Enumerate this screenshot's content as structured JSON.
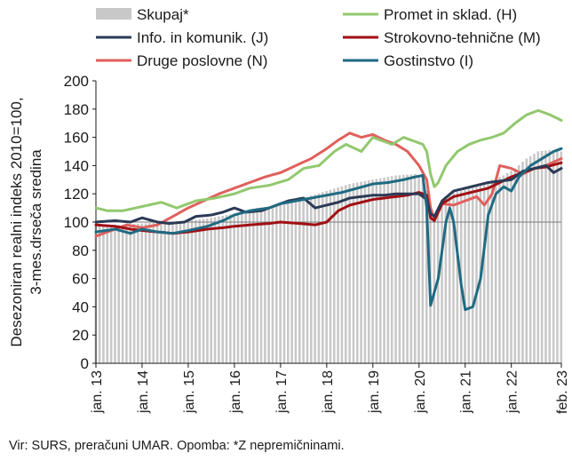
{
  "chart_data": {
    "type": "line",
    "ylabel_lines": [
      "Desezoniran realni indeks 2010=100,",
      "3-mes.drseča sredina"
    ],
    "ylim": [
      0,
      200
    ],
    "yticks": [
      0,
      20,
      40,
      60,
      80,
      100,
      120,
      140,
      160,
      180,
      200
    ],
    "reference_line": 100,
    "grid": false,
    "x_start": "2013-01",
    "x_end": "2023-02",
    "x_ticks": [
      {
        "label": "jan. 13",
        "date": "2013-01"
      },
      {
        "label": "jan. 14",
        "date": "2014-01"
      },
      {
        "label": "jan. 15",
        "date": "2015-01"
      },
      {
        "label": "jan. 16",
        "date": "2016-01"
      },
      {
        "label": "jan. 17",
        "date": "2017-01"
      },
      {
        "label": "jan. 18",
        "date": "2018-01"
      },
      {
        "label": "jan. 19",
        "date": "2019-01"
      },
      {
        "label": "jan. 20",
        "date": "2020-01"
      },
      {
        "label": "jan. 21",
        "date": "2021-01"
      },
      {
        "label": "jan. 22",
        "date": "2022-01"
      },
      {
        "label": "feb. 23",
        "date": "2023-02"
      }
    ],
    "legend_placement": "top",
    "legend_order": [
      "Skupaj*",
      "Promet in sklad. (H)",
      "Info. in komunik. (J)",
      "Strokovno-tehnične (M)",
      "Druge poslovne (N)",
      "Gostinstvo (I)"
    ],
    "bars": {
      "name": "Skupaj*",
      "color": "#c8c8c8",
      "points": [
        [
          "2013-01",
          98
        ],
        [
          "2013-07",
          98
        ],
        [
          "2014-01",
          99
        ],
        [
          "2014-07",
          100
        ],
        [
          "2015-01",
          101
        ],
        [
          "2015-07",
          103
        ],
        [
          "2016-01",
          106
        ],
        [
          "2016-07",
          110
        ],
        [
          "2017-01",
          112
        ],
        [
          "2017-07",
          117
        ],
        [
          "2018-01",
          122
        ],
        [
          "2018-07",
          127
        ],
        [
          "2019-01",
          130
        ],
        [
          "2019-07",
          133
        ],
        [
          "2019-12",
          134
        ],
        [
          "2020-02",
          133
        ],
        [
          "2020-03",
          122
        ],
        [
          "2020-04",
          104
        ],
        [
          "2020-05",
          102
        ],
        [
          "2020-06",
          110
        ],
        [
          "2020-08",
          118
        ],
        [
          "2020-10",
          121
        ],
        [
          "2020-12",
          122
        ],
        [
          "2021-02",
          124
        ],
        [
          "2021-05",
          126
        ],
        [
          "2021-08",
          130
        ],
        [
          "2021-11",
          133
        ],
        [
          "2022-02",
          138
        ],
        [
          "2022-05",
          145
        ],
        [
          "2022-08",
          150
        ],
        [
          "2022-11",
          151
        ],
        [
          "2023-02",
          150
        ]
      ]
    },
    "series": [
      {
        "name": "Promet in sklad. (H)",
        "color": "#92c86e",
        "points": [
          [
            "2013-01",
            110
          ],
          [
            "2013-04",
            108
          ],
          [
            "2013-08",
            108
          ],
          [
            "2014-01",
            111
          ],
          [
            "2014-06",
            114
          ],
          [
            "2014-10",
            110
          ],
          [
            "2015-03",
            115
          ],
          [
            "2015-08",
            117
          ],
          [
            "2016-01",
            120
          ],
          [
            "2016-05",
            124
          ],
          [
            "2016-10",
            126
          ],
          [
            "2017-03",
            130
          ],
          [
            "2017-07",
            138
          ],
          [
            "2017-11",
            140
          ],
          [
            "2018-03",
            150
          ],
          [
            "2018-06",
            155
          ],
          [
            "2018-10",
            150
          ],
          [
            "2019-01",
            160
          ],
          [
            "2019-03",
            158
          ],
          [
            "2019-06",
            155
          ],
          [
            "2019-09",
            160
          ],
          [
            "2019-12",
            157
          ],
          [
            "2020-02",
            155
          ],
          [
            "2020-03",
            150
          ],
          [
            "2020-04",
            134
          ],
          [
            "2020-05",
            125
          ],
          [
            "2020-06",
            128
          ],
          [
            "2020-08",
            140
          ],
          [
            "2020-11",
            150
          ],
          [
            "2021-02",
            155
          ],
          [
            "2021-05",
            158
          ],
          [
            "2021-08",
            160
          ],
          [
            "2021-11",
            163
          ],
          [
            "2022-02",
            170
          ],
          [
            "2022-05",
            176
          ],
          [
            "2022-08",
            179
          ],
          [
            "2022-11",
            176
          ],
          [
            "2023-02",
            172
          ]
        ]
      },
      {
        "name": "Info. in komunik. (J)",
        "color": "#2b3a55",
        "points": [
          [
            "2013-01",
            100
          ],
          [
            "2013-06",
            101
          ],
          [
            "2013-10",
            100
          ],
          [
            "2014-01",
            103
          ],
          [
            "2014-05",
            100
          ],
          [
            "2014-08",
            99
          ],
          [
            "2014-12",
            100
          ],
          [
            "2015-03",
            104
          ],
          [
            "2015-07",
            105
          ],
          [
            "2015-10",
            107
          ],
          [
            "2016-01",
            110
          ],
          [
            "2016-04",
            107
          ],
          [
            "2016-08",
            108
          ],
          [
            "2016-12",
            112
          ],
          [
            "2017-03",
            115
          ],
          [
            "2017-07",
            117
          ],
          [
            "2017-10",
            110
          ],
          [
            "2018-01",
            112
          ],
          [
            "2018-04",
            114
          ],
          [
            "2018-07",
            117
          ],
          [
            "2018-10",
            118
          ],
          [
            "2019-01",
            119
          ],
          [
            "2019-04",
            119
          ],
          [
            "2019-07",
            120
          ],
          [
            "2019-10",
            120
          ],
          [
            "2020-01",
            120
          ],
          [
            "2020-03",
            116
          ],
          [
            "2020-04",
            106
          ],
          [
            "2020-05",
            104
          ],
          [
            "2020-07",
            115
          ],
          [
            "2020-10",
            122
          ],
          [
            "2021-01",
            124
          ],
          [
            "2021-04",
            126
          ],
          [
            "2021-07",
            128
          ],
          [
            "2021-10",
            129
          ],
          [
            "2022-01",
            130
          ],
          [
            "2022-04",
            136
          ],
          [
            "2022-07",
            138
          ],
          [
            "2022-10",
            140
          ],
          [
            "2022-12",
            135
          ],
          [
            "2023-02",
            138
          ]
        ]
      },
      {
        "name": "Strokovno-tehnične (M)",
        "color": "#a00f14",
        "points": [
          [
            "2013-01",
            98
          ],
          [
            "2013-06",
            97
          ],
          [
            "2013-10",
            95
          ],
          [
            "2014-01",
            94
          ],
          [
            "2014-05",
            93
          ],
          [
            "2014-09",
            92
          ],
          [
            "2015-01",
            93
          ],
          [
            "2015-06",
            95
          ],
          [
            "2015-10",
            96
          ],
          [
            "2016-01",
            97
          ],
          [
            "2016-05",
            98
          ],
          [
            "2016-10",
            99
          ],
          [
            "2017-01",
            100
          ],
          [
            "2017-06",
            99
          ],
          [
            "2017-10",
            98
          ],
          [
            "2018-01",
            100
          ],
          [
            "2018-04",
            108
          ],
          [
            "2018-07",
            112
          ],
          [
            "2018-10",
            114
          ],
          [
            "2019-01",
            116
          ],
          [
            "2019-04",
            117
          ],
          [
            "2019-07",
            118
          ],
          [
            "2019-10",
            119
          ],
          [
            "2020-01",
            121
          ],
          [
            "2020-03",
            119
          ],
          [
            "2020-04",
            103
          ],
          [
            "2020-05",
            101
          ],
          [
            "2020-07",
            113
          ],
          [
            "2020-10",
            118
          ],
          [
            "2021-01",
            120
          ],
          [
            "2021-04",
            122
          ],
          [
            "2021-07",
            124
          ],
          [
            "2021-10",
            128
          ],
          [
            "2022-01",
            132
          ],
          [
            "2022-04",
            135
          ],
          [
            "2022-07",
            138
          ],
          [
            "2022-10",
            139
          ],
          [
            "2023-02",
            142
          ]
        ]
      },
      {
        "name": "Druge poslovne (N)",
        "color": "#e0605c",
        "points": [
          [
            "2013-01",
            90
          ],
          [
            "2013-05",
            94
          ],
          [
            "2013-09",
            98
          ],
          [
            "2014-01",
            96
          ],
          [
            "2014-05",
            98
          ],
          [
            "2014-09",
            104
          ],
          [
            "2015-01",
            110
          ],
          [
            "2015-05",
            115
          ],
          [
            "2015-09",
            120
          ],
          [
            "2016-01",
            124
          ],
          [
            "2016-05",
            128
          ],
          [
            "2016-09",
            132
          ],
          [
            "2017-01",
            135
          ],
          [
            "2017-05",
            140
          ],
          [
            "2017-09",
            145
          ],
          [
            "2018-01",
            152
          ],
          [
            "2018-04",
            158
          ],
          [
            "2018-07",
            163
          ],
          [
            "2018-10",
            160
          ],
          [
            "2019-01",
            162
          ],
          [
            "2019-04",
            158
          ],
          [
            "2019-07",
            155
          ],
          [
            "2019-10",
            150
          ],
          [
            "2020-01",
            140
          ],
          [
            "2020-03",
            130
          ],
          [
            "2020-04",
            110
          ],
          [
            "2020-05",
            102
          ],
          [
            "2020-07",
            113
          ],
          [
            "2020-10",
            112
          ],
          [
            "2021-01",
            115
          ],
          [
            "2021-04",
            118
          ],
          [
            "2021-06",
            112
          ],
          [
            "2021-08",
            120
          ],
          [
            "2021-10",
            140
          ],
          [
            "2022-01",
            138
          ],
          [
            "2022-04",
            134
          ],
          [
            "2022-07",
            138
          ],
          [
            "2022-10",
            140
          ],
          [
            "2023-02",
            145
          ]
        ]
      },
      {
        "name": "Gostinstvo (I)",
        "color": "#1f6a82",
        "points": [
          [
            "2013-01",
            93
          ],
          [
            "2013-06",
            95
          ],
          [
            "2013-10",
            92
          ],
          [
            "2014-01",
            95
          ],
          [
            "2014-05",
            93
          ],
          [
            "2014-09",
            92
          ],
          [
            "2015-01",
            94
          ],
          [
            "2015-06",
            97
          ],
          [
            "2015-10",
            101
          ],
          [
            "2016-01",
            105
          ],
          [
            "2016-05",
            108
          ],
          [
            "2016-10",
            110
          ],
          [
            "2017-01",
            113
          ],
          [
            "2017-05",
            115
          ],
          [
            "2017-09",
            117
          ],
          [
            "2018-01",
            119
          ],
          [
            "2018-05",
            121
          ],
          [
            "2018-09",
            124
          ],
          [
            "2019-01",
            127
          ],
          [
            "2019-05",
            128
          ],
          [
            "2019-09",
            130
          ],
          [
            "2019-12",
            132
          ],
          [
            "2020-02",
            133
          ],
          [
            "2020-03",
            110
          ],
          [
            "2020-04",
            41
          ],
          [
            "2020-06",
            60
          ],
          [
            "2020-08",
            100
          ],
          [
            "2020-09",
            110
          ],
          [
            "2020-10",
            100
          ],
          [
            "2020-12",
            55
          ],
          [
            "2021-01",
            38
          ],
          [
            "2021-03",
            40
          ],
          [
            "2021-05",
            60
          ],
          [
            "2021-07",
            105
          ],
          [
            "2021-09",
            120
          ],
          [
            "2021-11",
            125
          ],
          [
            "2022-01",
            122
          ],
          [
            "2022-03",
            132
          ],
          [
            "2022-06",
            140
          ],
          [
            "2022-09",
            145
          ],
          [
            "2022-12",
            150
          ],
          [
            "2023-02",
            152
          ]
        ]
      }
    ]
  },
  "source_note": "Vir: SURS, preračuni UMAR. Opomba: *Z nepremičninami."
}
